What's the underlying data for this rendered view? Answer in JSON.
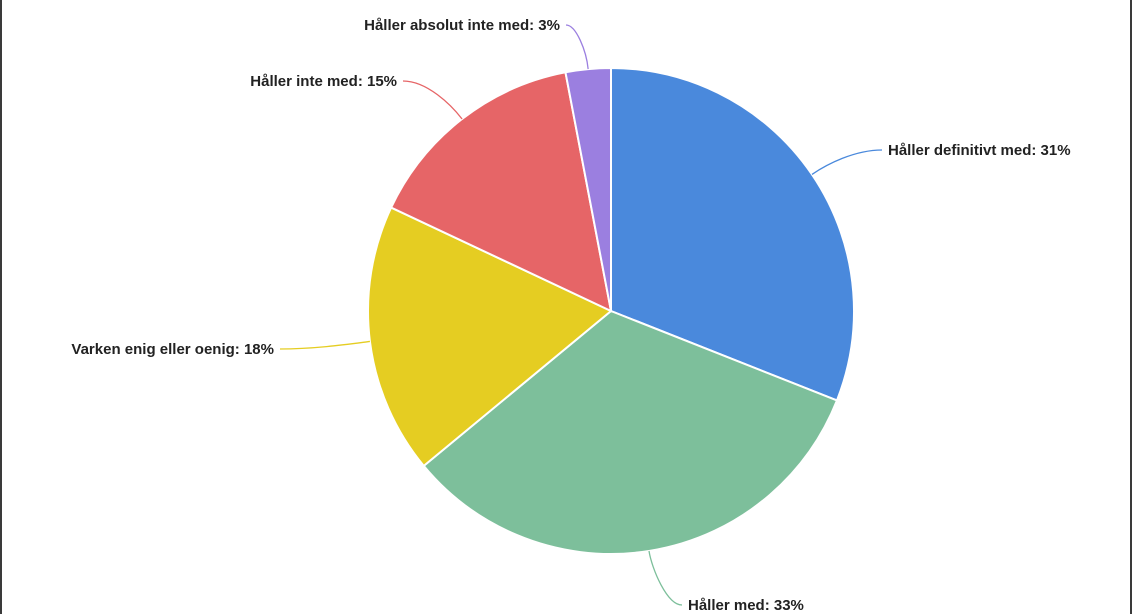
{
  "chart_data": {
    "type": "pie",
    "title": "",
    "slices": [
      {
        "label": "Håller definitivt med",
        "value": 31,
        "color": "#4a89dc",
        "text": "Håller definitivt med: 31%"
      },
      {
        "label": "Håller med",
        "value": 33,
        "color": "#7dbf9b",
        "text": "Håller med: 33%"
      },
      {
        "label": "Varken enig eller oenig",
        "value": 18,
        "color": "#e5cd22",
        "text": "Varken enig eller oenig: 18%"
      },
      {
        "label": "Håller inte med",
        "value": 15,
        "color": "#e66567",
        "text": "Håller inte med: 15%"
      },
      {
        "label": "Håller absolut inte med",
        "value": 3,
        "color": "#9b7fe0",
        "text": "Håller absolut inte med: 3%"
      }
    ],
    "start": "top",
    "direction": "clockwise",
    "legend": "none"
  }
}
